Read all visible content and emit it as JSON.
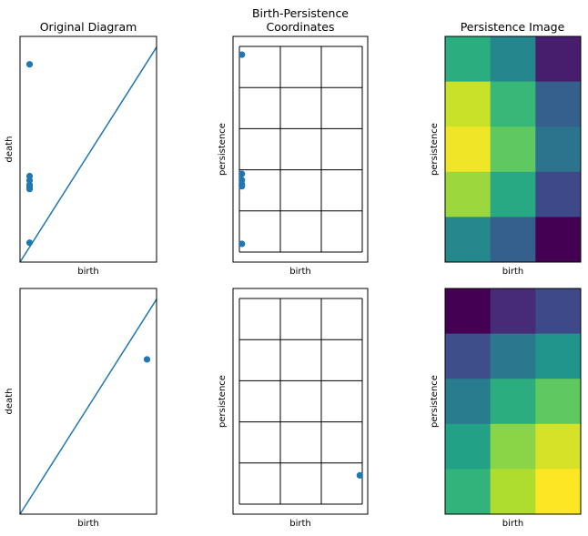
{
  "titles": {
    "col1": "Original Diagram",
    "col2_line1": "Birth-Persistence",
    "col2_line2": "Coordinates",
    "col3": "Persistence Image"
  },
  "chart_data": [
    {
      "type": "scatter",
      "panel": "row1-original-diagram",
      "title": "Original Diagram",
      "xlabel": "birth",
      "ylabel": "death",
      "xlim": [
        0,
        1
      ],
      "ylim": [
        0,
        1.05
      ],
      "diagonal": true,
      "points": [
        {
          "x": 0.07,
          "y": 0.92
        },
        {
          "x": 0.07,
          "y": 0.4
        },
        {
          "x": 0.07,
          "y": 0.38
        },
        {
          "x": 0.07,
          "y": 0.36
        },
        {
          "x": 0.07,
          "y": 0.35
        },
        {
          "x": 0.07,
          "y": 0.34
        },
        {
          "x": 0.07,
          "y": 0.09
        }
      ]
    },
    {
      "type": "scatter",
      "panel": "row1-birth-persistence",
      "title": "Birth-Persistence Coordinates",
      "xlabel": "birth",
      "ylabel": "persistence",
      "xlim": [
        0,
        1
      ],
      "ylim": [
        0,
        1
      ],
      "grid": {
        "cols": 3,
        "rows": 5
      },
      "points": [
        {
          "x": 0.02,
          "y": 0.96
        },
        {
          "x": 0.02,
          "y": 0.38
        },
        {
          "x": 0.02,
          "y": 0.35
        },
        {
          "x": 0.02,
          "y": 0.33
        },
        {
          "x": 0.02,
          "y": 0.32
        },
        {
          "x": 0.02,
          "y": 0.04
        }
      ]
    },
    {
      "type": "heatmap",
      "panel": "row1-persistence-image",
      "title": "Persistence Image",
      "xlabel": "birth",
      "ylabel": "persistence",
      "colormap": "viridis",
      "values": [
        [
          0.62,
          0.46,
          0.08
        ],
        [
          0.92,
          0.67,
          0.3
        ],
        [
          0.98,
          0.75,
          0.38
        ],
        [
          0.85,
          0.6,
          0.22
        ],
        [
          0.47,
          0.3,
          0.0
        ]
      ]
    },
    {
      "type": "scatter",
      "panel": "row2-original-diagram",
      "xlabel": "birth",
      "ylabel": "death",
      "xlim": [
        0,
        1
      ],
      "ylim": [
        0,
        1.05
      ],
      "diagonal": true,
      "points": [
        {
          "x": 0.93,
          "y": 0.72
        }
      ]
    },
    {
      "type": "scatter",
      "panel": "row2-birth-persistence",
      "xlabel": "birth",
      "ylabel": "persistence",
      "xlim": [
        0,
        1
      ],
      "ylim": [
        0,
        1
      ],
      "grid": {
        "cols": 3,
        "rows": 5
      },
      "points": [
        {
          "x": 0.98,
          "y": 0.14
        }
      ]
    },
    {
      "type": "heatmap",
      "panel": "row2-persistence-image",
      "xlabel": "birth",
      "ylabel": "persistence",
      "colormap": "viridis",
      "values": [
        [
          0.0,
          0.12,
          0.22
        ],
        [
          0.24,
          0.4,
          0.52
        ],
        [
          0.42,
          0.62,
          0.75
        ],
        [
          0.57,
          0.82,
          0.94
        ],
        [
          0.65,
          0.88,
          1.0
        ]
      ]
    }
  ]
}
